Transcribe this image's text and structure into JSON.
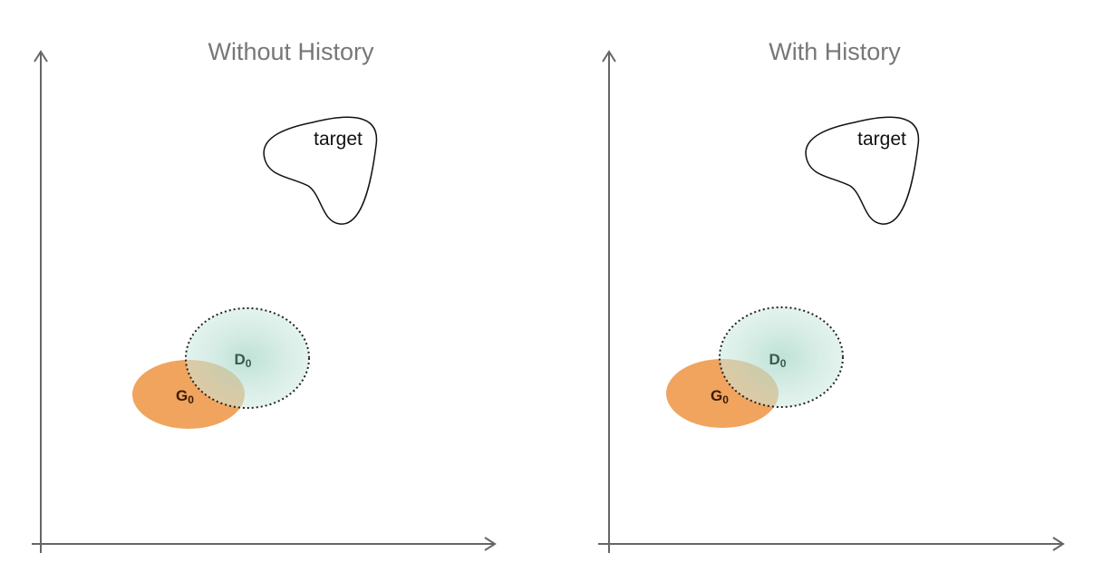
{
  "panels": [
    {
      "title": "Without History",
      "target": "target",
      "g": {
        "label": "G",
        "subscript": "0"
      },
      "d": {
        "label": "D",
        "subscript": "0"
      }
    },
    {
      "title": "With History",
      "target": "target",
      "g": {
        "label": "G",
        "subscript": "0"
      },
      "d": {
        "label": "D",
        "subscript": "0"
      }
    }
  ]
}
